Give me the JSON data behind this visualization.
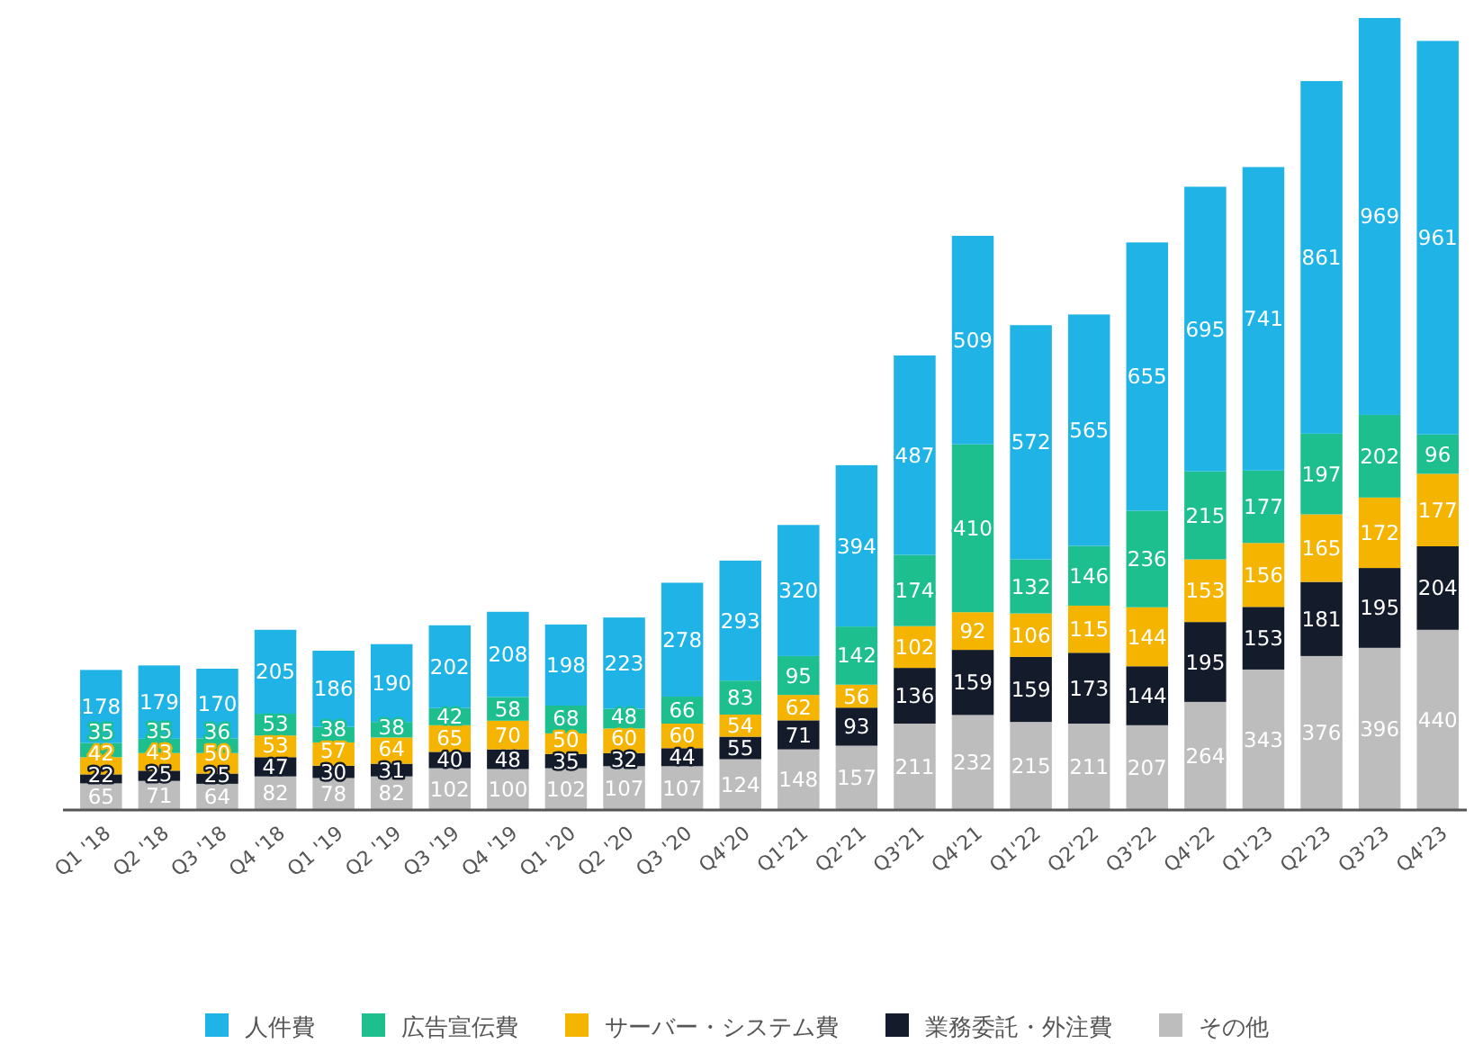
{
  "chart_data": {
    "type": "bar",
    "stacked": true,
    "data_labels": true,
    "legend": "bottom",
    "categories": [
      "Q1 '18",
      "Q2 '18",
      "Q3 '18",
      "Q4 '18",
      "Q1 '19",
      "Q2 '19",
      "Q3 '19",
      "Q4 '19",
      "Q1 '20",
      "Q2 '20",
      "Q3 '20",
      "Q4'20",
      "Q1'21",
      "Q2'21",
      "Q3'21",
      "Q4'21",
      "Q1'22",
      "Q2'22",
      "Q3'22",
      "Q4'22",
      "Q1'23",
      "Q2'23",
      "Q3'23",
      "Q4'23"
    ],
    "series": [
      {
        "name": "その他",
        "color": "#bdbdbd",
        "values": [
          65,
          71,
          64,
          82,
          78,
          82,
          102,
          100,
          102,
          107,
          107,
          124,
          148,
          157,
          211,
          232,
          215,
          211,
          207,
          264,
          343,
          376,
          396,
          440
        ]
      },
      {
        "name": "業務委託・外注費",
        "color": "#141c2b",
        "values": [
          22,
          25,
          25,
          47,
          30,
          31,
          40,
          48,
          35,
          32,
          44,
          55,
          71,
          93,
          136,
          159,
          159,
          173,
          144,
          195,
          153,
          181,
          195,
          204
        ]
      },
      {
        "name": "サーバー・システム費",
        "color": "#f5b400",
        "values": [
          42,
          43,
          50,
          53,
          57,
          64,
          65,
          70,
          50,
          60,
          60,
          54,
          62,
          56,
          102,
          92,
          106,
          115,
          144,
          153,
          156,
          165,
          172,
          177
        ]
      },
      {
        "name": "広告宣伝費",
        "color": "#1dbf8e",
        "values": [
          35,
          35,
          36,
          53,
          38,
          38,
          42,
          58,
          68,
          48,
          66,
          83,
          95,
          142,
          174,
          410,
          132,
          146,
          236,
          215,
          177,
          197,
          202,
          96
        ]
      },
      {
        "name": "人件費",
        "color": "#1fb3e6",
        "values": [
          178,
          179,
          170,
          205,
          186,
          190,
          202,
          208,
          198,
          223,
          278,
          293,
          320,
          394,
          487,
          509,
          572,
          565,
          655,
          695,
          741,
          861,
          969,
          961
        ]
      }
    ]
  }
}
